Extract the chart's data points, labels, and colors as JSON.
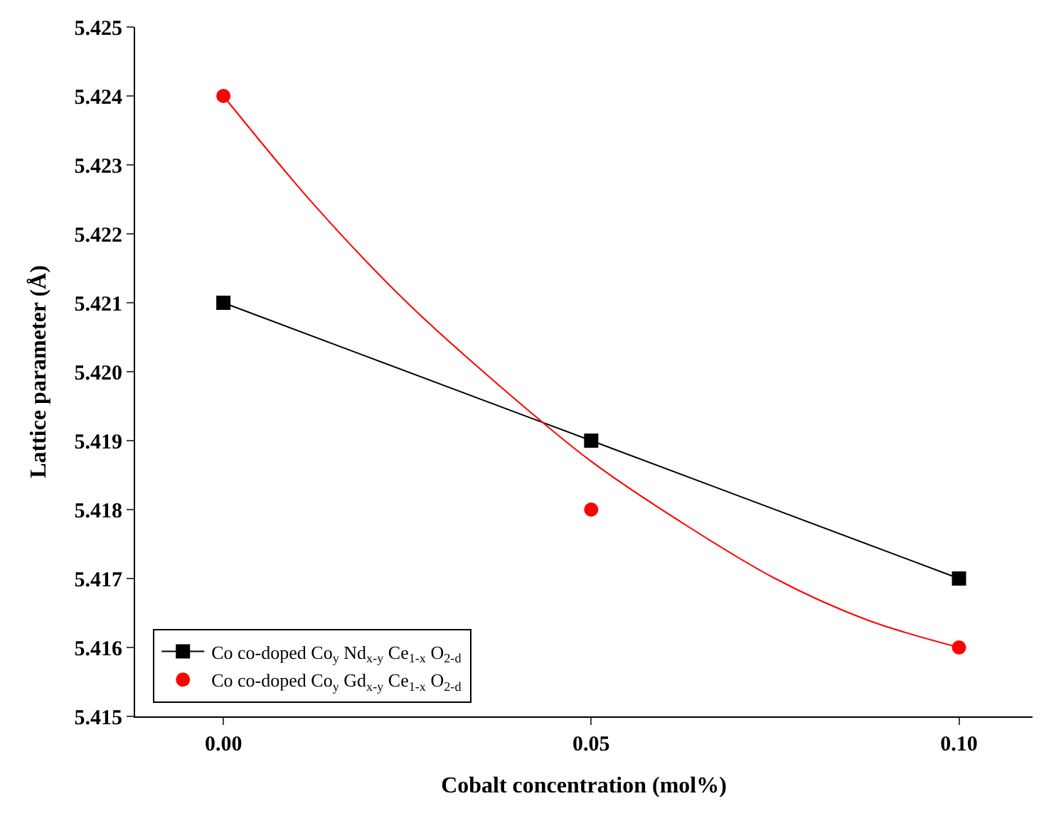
{
  "chart_data": {
    "type": "line",
    "xlabel": "Cobalt concentration (mol%)",
    "ylabel": "Lattice parameter (Å)",
    "x": [
      0,
      0.05,
      0.1
    ],
    "xlim": [
      -0.012,
      0.11
    ],
    "xticks": [
      {
        "value": 0,
        "label": "0.00"
      },
      {
        "value": 0.05,
        "label": "0.05"
      },
      {
        "value": 0.1,
        "label": "0.10"
      }
    ],
    "ylim": [
      5.415,
      5.425
    ],
    "yticks": [
      {
        "value": 5.415,
        "label": "5.415"
      },
      {
        "value": 5.416,
        "label": "5.416"
      },
      {
        "value": 5.417,
        "label": "5.417"
      },
      {
        "value": 5.418,
        "label": "5.418"
      },
      {
        "value": 5.419,
        "label": "5.419"
      },
      {
        "value": 5.42,
        "label": "5.420"
      },
      {
        "value": 5.421,
        "label": "5.421"
      },
      {
        "value": 5.422,
        "label": "5.422"
      },
      {
        "value": 5.423,
        "label": "5.423"
      },
      {
        "value": 5.424,
        "label": "5.424"
      },
      {
        "value": 5.425,
        "label": "5.425"
      }
    ],
    "legend": "bottom left",
    "series": [
      {
        "name": "Co co-doped Co$_{y}$ Nd$_{x-y}$ Ce$_{1-x}$ O$_{2-d}$",
        "color": "#000000",
        "marker": "square",
        "values": [
          5.421,
          5.419,
          5.417
        ]
      },
      {
        "name": "Co co-doped Co$_{y}$ Gd$_{x-y}$ Ce$_{1-x}$ O$_{2-d}$",
        "color": "#ff0000",
        "type": "scatter",
        "marker": "circle",
        "values": [
          5.424,
          5.418,
          5.416
        ]
      },
      {
        "color": "#ff0000",
        "type": "line",
        "marker": "none",
        "x": [
          0,
          0.0125,
          0.025,
          0.0375,
          0.05,
          0.0625,
          0.075,
          0.0875,
          0.1
        ],
        "values": [
          5.424,
          5.4224,
          5.421,
          5.4198,
          5.4187,
          5.4178,
          5.417,
          5.4164,
          5.416
        ]
      }
    ]
  }
}
